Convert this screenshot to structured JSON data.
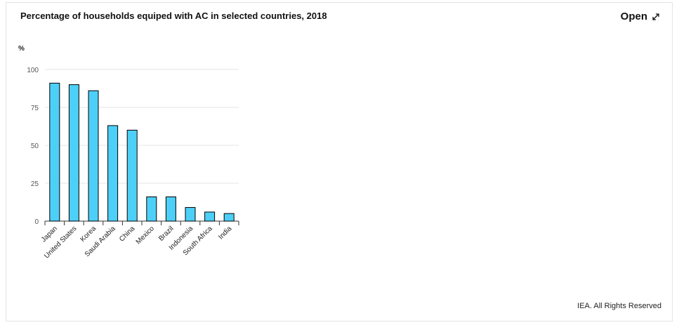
{
  "header": {
    "title": "Percentage of households equiped with AC in selected countries, 2018",
    "open_label": "Open",
    "open_icon": "expand-icon"
  },
  "footer": {
    "copyright": "IEA. All Rights Reserved"
  },
  "chart_data": {
    "type": "bar",
    "title": "Percentage of households equiped with AC in selected countries, 2018",
    "ylabel": "%",
    "xlabel": "",
    "ylim": [
      0,
      100
    ],
    "yticks": [
      0,
      25,
      50,
      75,
      100
    ],
    "grid": true,
    "categories": [
      "Japan",
      "United States",
      "Korea",
      "Saudi Arabia",
      "China",
      "Mexico",
      "Brazil",
      "Indonesia",
      "South Africa",
      "India"
    ],
    "values": [
      91,
      90,
      86,
      63,
      60,
      16,
      16,
      9,
      6,
      5
    ],
    "bar_color": "#4dd0f7",
    "bar_stroke": "#000000"
  }
}
